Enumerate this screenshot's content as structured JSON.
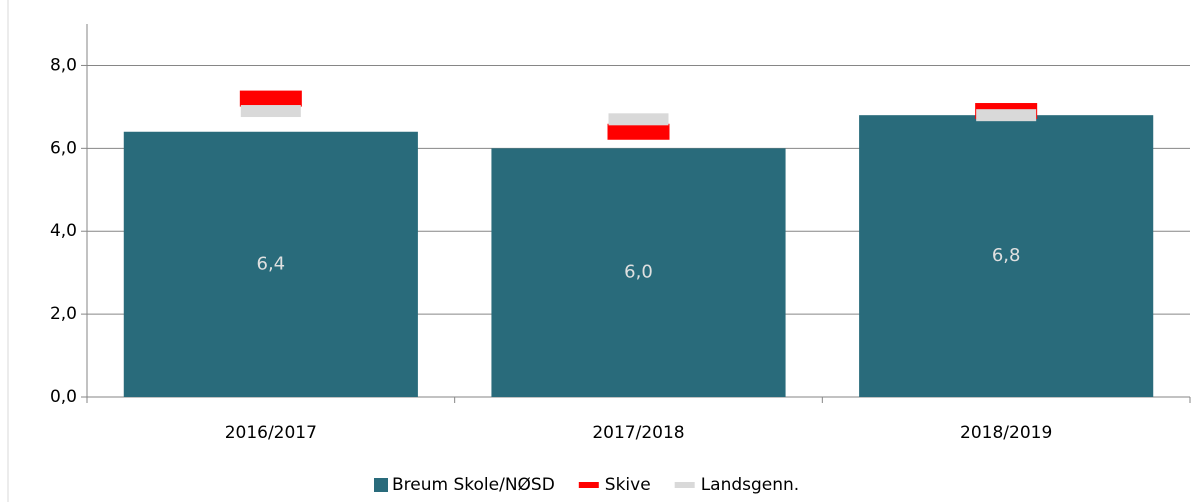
{
  "chart_data": {
    "type": "bar",
    "categories": [
      "2016/2017",
      "2017/2018",
      "2018/2019"
    ],
    "series": [
      {
        "name": "Breum Skole/NØSD",
        "type": "bar",
        "color": "#296b7b",
        "values": [
          6.4,
          6.0,
          6.8
        ],
        "value_labels": [
          "6,4",
          "6,0",
          "6,8"
        ]
      },
      {
        "name": "Skive",
        "type": "marker",
        "color": "#ff0000",
        "values": [
          7.2,
          6.4,
          6.9
        ]
      },
      {
        "name": "Landsgenn.",
        "type": "marker",
        "color": "#d9d9d9",
        "values": [
          6.9,
          6.7,
          6.8
        ]
      }
    ],
    "ylim": [
      0,
      9
    ],
    "yticks": [
      {
        "value": 0,
        "label": "0,0"
      },
      {
        "value": 2,
        "label": "2,0"
      },
      {
        "value": 4,
        "label": "4,0"
      },
      {
        "value": 6,
        "label": "6,0"
      },
      {
        "value": 8,
        "label": "8,0"
      }
    ],
    "grid": true,
    "legend": "bottom"
  }
}
